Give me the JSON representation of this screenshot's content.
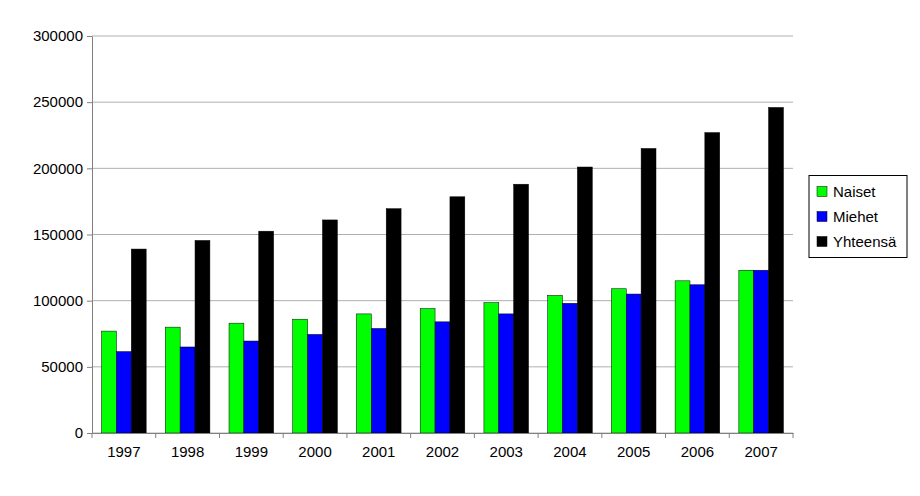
{
  "chart_data": {
    "type": "bar",
    "categories": [
      "1997",
      "1998",
      "1999",
      "2000",
      "2001",
      "2002",
      "2003",
      "2004",
      "2005",
      "2006",
      "2007"
    ],
    "series": [
      {
        "name": "Naiset",
        "color": "#00ff00",
        "values": [
          77000,
          80000,
          83000,
          86000,
          90000,
          94000,
          98500,
          104000,
          109000,
          115000,
          123000
        ]
      },
      {
        "name": "Miehet",
        "color": "#0000ff",
        "values": [
          61500,
          65000,
          69500,
          74500,
          79000,
          84000,
          90000,
          98000,
          105000,
          112000,
          123000
        ]
      },
      {
        "name": "Yhteensä",
        "color": "#000000",
        "values": [
          139000,
          145500,
          152500,
          161000,
          169500,
          178500,
          188000,
          201000,
          215000,
          227000,
          246000
        ]
      }
    ],
    "ylim": [
      0,
      300000
    ],
    "yticks": [
      0,
      50000,
      100000,
      150000,
      200000,
      250000,
      300000
    ],
    "grid": true,
    "legend": "right"
  }
}
